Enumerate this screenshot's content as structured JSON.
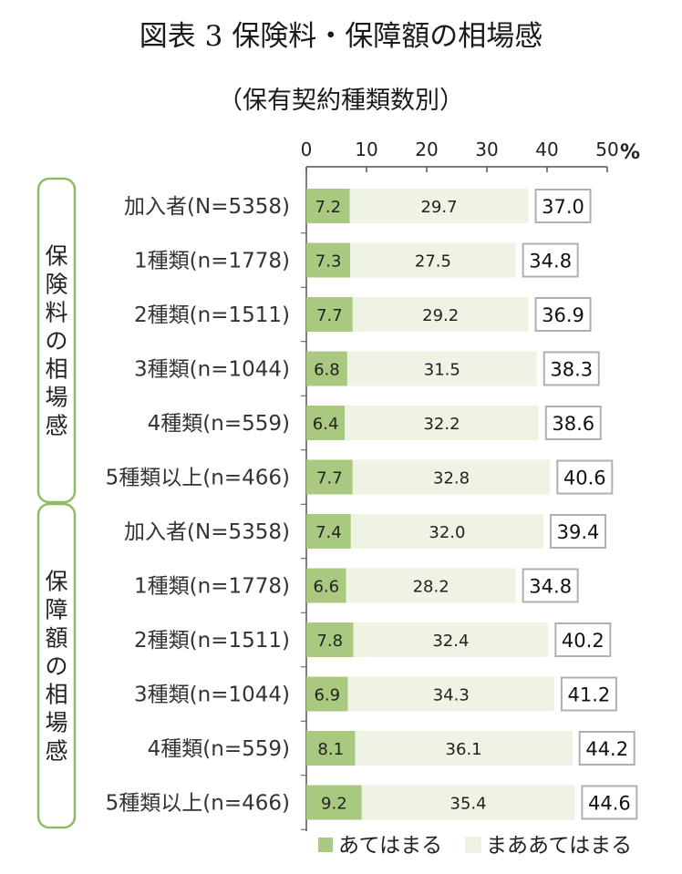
{
  "figure": {
    "title": "図表 3 保険料・保障額の相場感",
    "subtitle": "（保有契約種類数別）"
  },
  "colors": {
    "atehamaru": "#a9c981",
    "maa_atehamaru": "#eef3e4",
    "group_border": "#8cbc64",
    "total_border": "#b0b0b0",
    "axis": "#555555"
  },
  "chart_data": {
    "type": "bar",
    "orientation": "horizontal",
    "stacked": true,
    "xlim": [
      0,
      50
    ],
    "x_ticks": [
      "0",
      "10",
      "20",
      "30",
      "40",
      "50"
    ],
    "x_unit": "%",
    "grid": false,
    "legend_position": "bottom",
    "groups": [
      {
        "label": "保険料の相場感",
        "categories": [
          "加入者(N=5358)",
          "1種類(n=1778)",
          "2種類(n=1511)",
          "3種類(n=1044)",
          "4種類(n=559)",
          "5種類以上(n=466)"
        ],
        "totals": [
          37.0,
          34.8,
          36.9,
          38.3,
          38.6,
          40.6
        ]
      },
      {
        "label": "保障額の相場感",
        "categories": [
          "加入者(N=5358)",
          "1種類(n=1778)",
          "2種類(n=1511)",
          "3種類(n=1044)",
          "4種類(n=559)",
          "5種類以上(n=466)"
        ],
        "totals": [
          39.4,
          34.8,
          40.2,
          41.2,
          44.2,
          44.6
        ]
      }
    ],
    "series": [
      {
        "name": "あてはまる",
        "values": [
          7.2,
          7.3,
          7.7,
          6.8,
          6.4,
          7.7,
          7.4,
          6.6,
          7.8,
          6.9,
          8.1,
          9.2
        ]
      },
      {
        "name": "まああてはまる",
        "values": [
          29.7,
          27.5,
          29.2,
          31.5,
          32.2,
          32.8,
          32.0,
          28.2,
          32.4,
          34.3,
          36.1,
          35.4
        ]
      }
    ]
  }
}
